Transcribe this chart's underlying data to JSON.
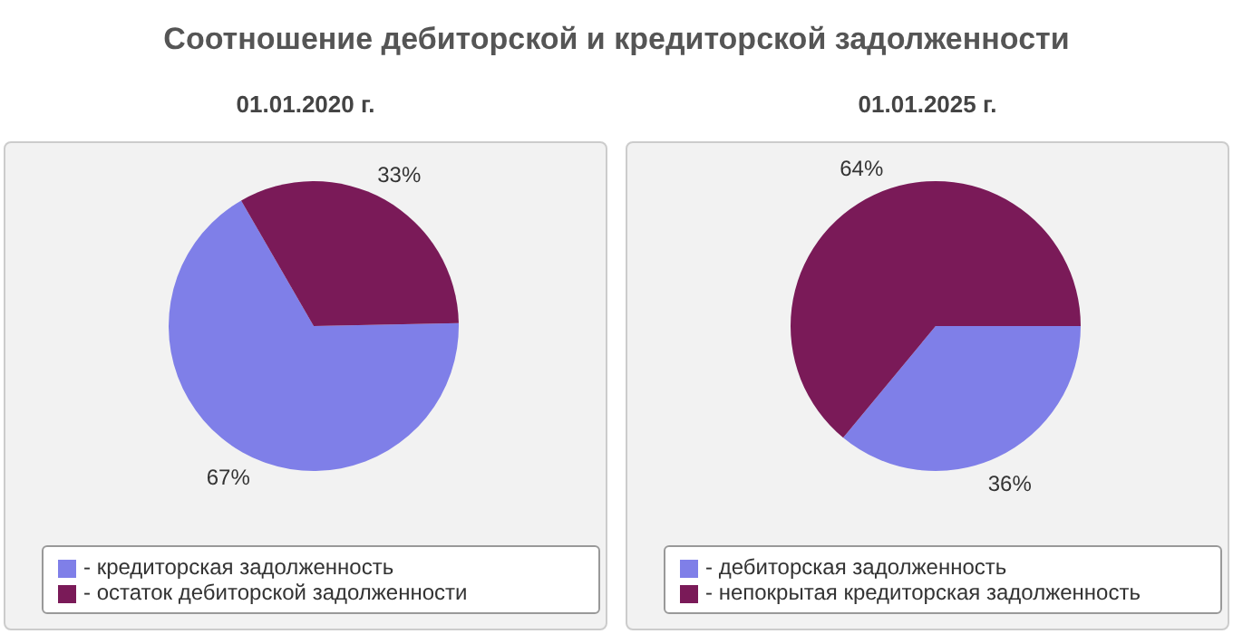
{
  "chart_data": [
    {
      "type": "pie",
      "title": "Соотношение дебиторской и кредиторской задолженности",
      "subtitle": "01.01.2020 г.",
      "categories": [
        "- кредиторская задолженность",
        "- остаток дебиторской задолженности"
      ],
      "values": [
        67,
        33
      ],
      "colors": [
        "#7f7fe8",
        "#7a1a58"
      ],
      "value_labels": [
        "67%",
        "33%"
      ],
      "legend": "bottom"
    },
    {
      "type": "pie",
      "subtitle": "01.01.2025 г.",
      "categories": [
        "- дебиторская задолженность",
        "- непокрытая кредиторская задолженность"
      ],
      "values": [
        36,
        64
      ],
      "colors": [
        "#7f7fe8",
        "#7a1a58"
      ],
      "value_labels": [
        "36%",
        "64%"
      ],
      "legend": "bottom"
    }
  ]
}
